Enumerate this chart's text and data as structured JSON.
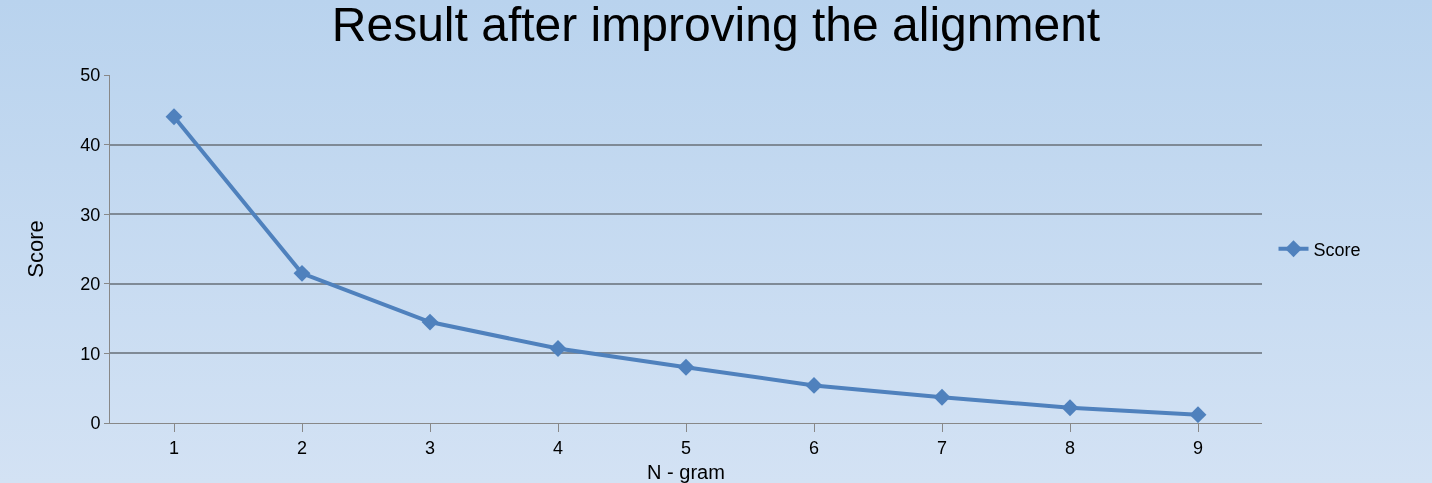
{
  "chart_data": {
    "type": "line",
    "title": "Result after improving the alignment",
    "xlabel": "N - gram",
    "ylabel": "Score",
    "categories": [
      "1",
      "2",
      "3",
      "4",
      "5",
      "6",
      "7",
      "8",
      "9"
    ],
    "series": [
      {
        "name": "Score",
        "color": "#4f81bd",
        "values": [
          44,
          21.5,
          14.5,
          10.7,
          8,
          5.4,
          3.7,
          2.2,
          1.2
        ]
      }
    ],
    "ylim": [
      0,
      50
    ],
    "yticks": [
      0,
      10,
      20,
      30,
      40,
      50
    ],
    "grid": "y",
    "legend": "right",
    "marker": "diamond",
    "line_style": "solid"
  }
}
